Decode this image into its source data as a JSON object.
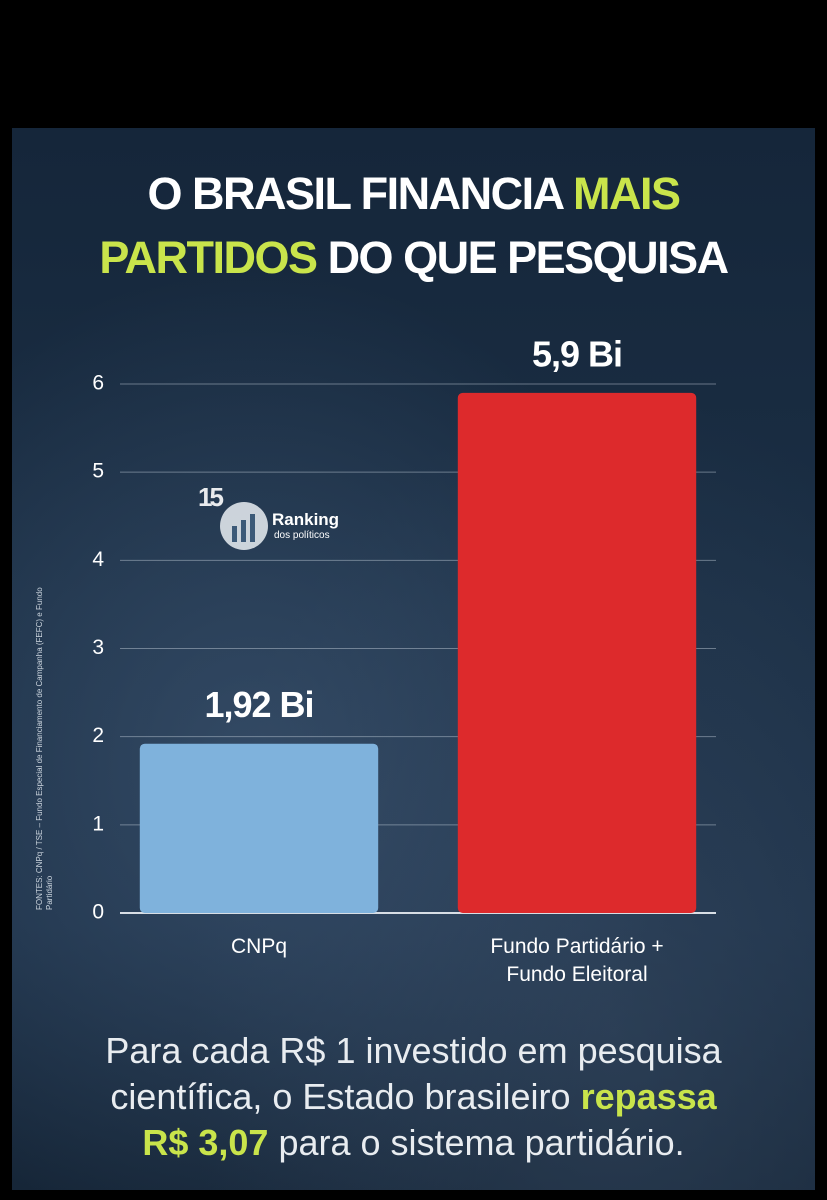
{
  "chart_data": {
    "type": "bar",
    "title_parts": [
      "O BRASIL FINANCIA",
      "MAIS",
      "PARTIDOS",
      "DO QUE PESQUISA"
    ],
    "categories": [
      "CNPq",
      "Fundo Partidário + Fundo Eleitoral"
    ],
    "values": [
      1.92,
      5.9
    ],
    "value_labels": [
      "1,92 Bi",
      "5,9 Bi"
    ],
    "colors": [
      "#7fb2dc",
      "#dd2a2c"
    ],
    "ylim": [
      0,
      6
    ],
    "yticks": [
      0,
      1,
      2,
      3,
      4,
      5,
      6
    ],
    "grid": true,
    "source": "FONTES: CNPq / TSE – Fundo Especial de Financiamento de Campanha (FEFC) e Fundo Partidário",
    "watermark": {
      "badge": "15",
      "name": "Ranking",
      "tagline": "dos políticos"
    },
    "footer_parts": [
      "Para cada R$ 1 investido em pesquisa",
      "científica, o Estado brasileiro",
      "repassa",
      "R$ 3,07",
      "para o sistema partidário."
    ]
  }
}
